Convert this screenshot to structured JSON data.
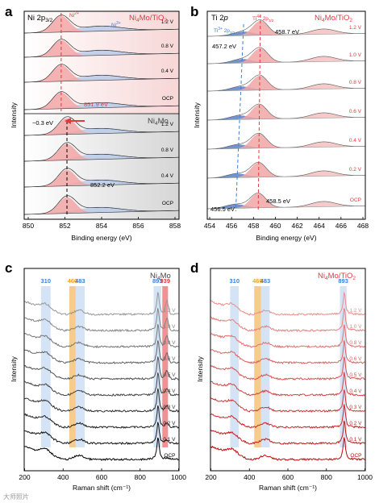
{
  "panels": {
    "a": {
      "letter": "a",
      "title": "Ni 2p3/2",
      "sample_label": "Ni4Mo/TiO2",
      "sample_label2": "Ni4Mo",
      "peak1": "Ni²⁺",
      "peak2": "Ni³⁺",
      "xlabel": "Binding energy (eV)",
      "ylabel": "Intensity",
      "shift": "−0.3 eV",
      "ann_top": "851.9 eV",
      "ann_bottom": "852.2 eV"
    },
    "b": {
      "letter": "b",
      "title": "Ti 2p",
      "sample_label": "Ni4Mo/TiO2",
      "peak1": "Ti⁴⁺ 2p3/2",
      "peak2": "Ti³⁺ 2p3/2",
      "xlabel": "Binding energy (eV)",
      "ylabel": "Intensity",
      "ann1": "458.7 eV",
      "ann2": "457.2 eV",
      "ann3": "456.5 eV",
      "ann4": "458.5 eV"
    },
    "c": {
      "letter": "c",
      "sample_label": "Ni4Mo",
      "xlabel": "Raman shift (cm⁻¹)",
      "ylabel": "Intensity"
    },
    "d": {
      "letter": "d",
      "sample_label": "Ni4Mo/TiO2",
      "xlabel": "Raman shift (cm⁻¹)",
      "ylabel": "Intensity"
    }
  },
  "watermark": "大师照片",
  "colors": {
    "red": "#e3383c",
    "blue": "#3d7fd6",
    "orange": "#f0a030",
    "ni_fill": "#f2a6a6",
    "ni3_fill": "#b7c9ea",
    "gray": "#8a8a8a"
  },
  "chart_data": [
    {
      "panel": "a",
      "type": "area",
      "title": "Ni 2p3/2",
      "xlabel": "Binding energy (eV)",
      "ylabel": "Intensity",
      "xlim": [
        850,
        858
      ],
      "xticks": [
        850,
        852,
        854,
        856,
        858
      ],
      "series": [
        {
          "name": "Ni4Mo/TiO2 1.2 V",
          "peak_eV": 851.9
        },
        {
          "name": "Ni4Mo/TiO2 0.8 V",
          "peak_eV": 851.9
        },
        {
          "name": "Ni4Mo/TiO2 0.4 V",
          "peak_eV": 851.9
        },
        {
          "name": "Ni4Mo/TiO2 OCP",
          "peak_eV": 851.9
        },
        {
          "name": "Ni4Mo 1.2 V",
          "peak_eV": 852.2
        },
        {
          "name": "Ni4Mo 0.8 V",
          "peak_eV": 852.2
        },
        {
          "name": "Ni4Mo 0.4 V",
          "peak_eV": 852.2
        },
        {
          "name": "Ni4Mo OCP",
          "peak_eV": 852.2
        }
      ],
      "labels_top": [
        "1.2 V",
        "0.8 V",
        "0.4 V",
        "OCP"
      ],
      "labels_bottom": [
        "1.2 V",
        "0.8 V",
        "0.4 V",
        "OCP"
      ],
      "annotations": [
        "851.9 eV",
        "852.2 eV",
        "−0.3 eV"
      ]
    },
    {
      "panel": "b",
      "type": "area",
      "title": "Ti 2p",
      "xlabel": "Binding energy (eV)",
      "ylabel": "Intensity",
      "xlim": [
        454,
        468
      ],
      "xticks": [
        454,
        456,
        458,
        460,
        462,
        464,
        466,
        468
      ],
      "labels": [
        "1.2 V",
        "1.0 V",
        "0.8 V",
        "0.6 V",
        "0.4 V",
        "0.2 V",
        "OCP"
      ],
      "ti4_peak_eV_top": 458.7,
      "ti4_peak_eV_ocp": 458.5,
      "ti3_peak_eV_top": 457.2,
      "ti3_peak_eV_ocp": 456.5,
      "annotations": [
        "458.7 eV",
        "457.2 eV",
        "456.5 eV",
        "458.5 eV"
      ]
    },
    {
      "panel": "c",
      "type": "line",
      "xlabel": "Raman shift (cm⁻¹)",
      "ylabel": "Intensity",
      "xlim": [
        200,
        1000
      ],
      "xticks": [
        200,
        400,
        600,
        800,
        1000
      ],
      "labels": [
        "1.2 V",
        "1.0 V",
        "0.8 V",
        "0.6 V",
        "0.5 V",
        "0.4 V",
        "0.3 V",
        "0.2 V",
        "0.1 V",
        "OCP"
      ],
      "bands": [
        {
          "label": "310",
          "x": [
            285,
            335
          ],
          "color": "#3d7fd6"
        },
        {
          "label": "460",
          "x": [
            432,
            465
          ],
          "color": "#f0a030"
        },
        {
          "label": "483",
          "x": [
            465,
            512
          ],
          "color": "#3d7fd6"
        },
        {
          "label": "893",
          "x": [
            870,
            910
          ],
          "color": "#3d7fd6"
        },
        {
          "label": "939",
          "x": [
            915,
            945
          ],
          "color": "#e3383c"
        }
      ]
    },
    {
      "panel": "d",
      "type": "line",
      "xlabel": "Raman shift (cm⁻¹)",
      "ylabel": "Intensity",
      "xlim": [
        200,
        1000
      ],
      "xticks": [
        200,
        400,
        600,
        800,
        1000
      ],
      "labels": [
        "1.2 V",
        "1.0 V",
        "0.8 V",
        "0.6 V",
        "0.5 V",
        "0.4 V",
        "0.3 V",
        "0.2 V",
        "0.1 V",
        "OCP"
      ],
      "bands": [
        {
          "label": "310",
          "x": [
            300,
            345
          ],
          "color": "#3d7fd6"
        },
        {
          "label": "460",
          "x": [
            425,
            460
          ],
          "color": "#f0a030"
        },
        {
          "label": "483",
          "x": [
            460,
            505
          ],
          "color": "#3d7fd6"
        },
        {
          "label": "893",
          "x": [
            870,
            905
          ],
          "color": "#3d7fd6"
        }
      ]
    }
  ]
}
